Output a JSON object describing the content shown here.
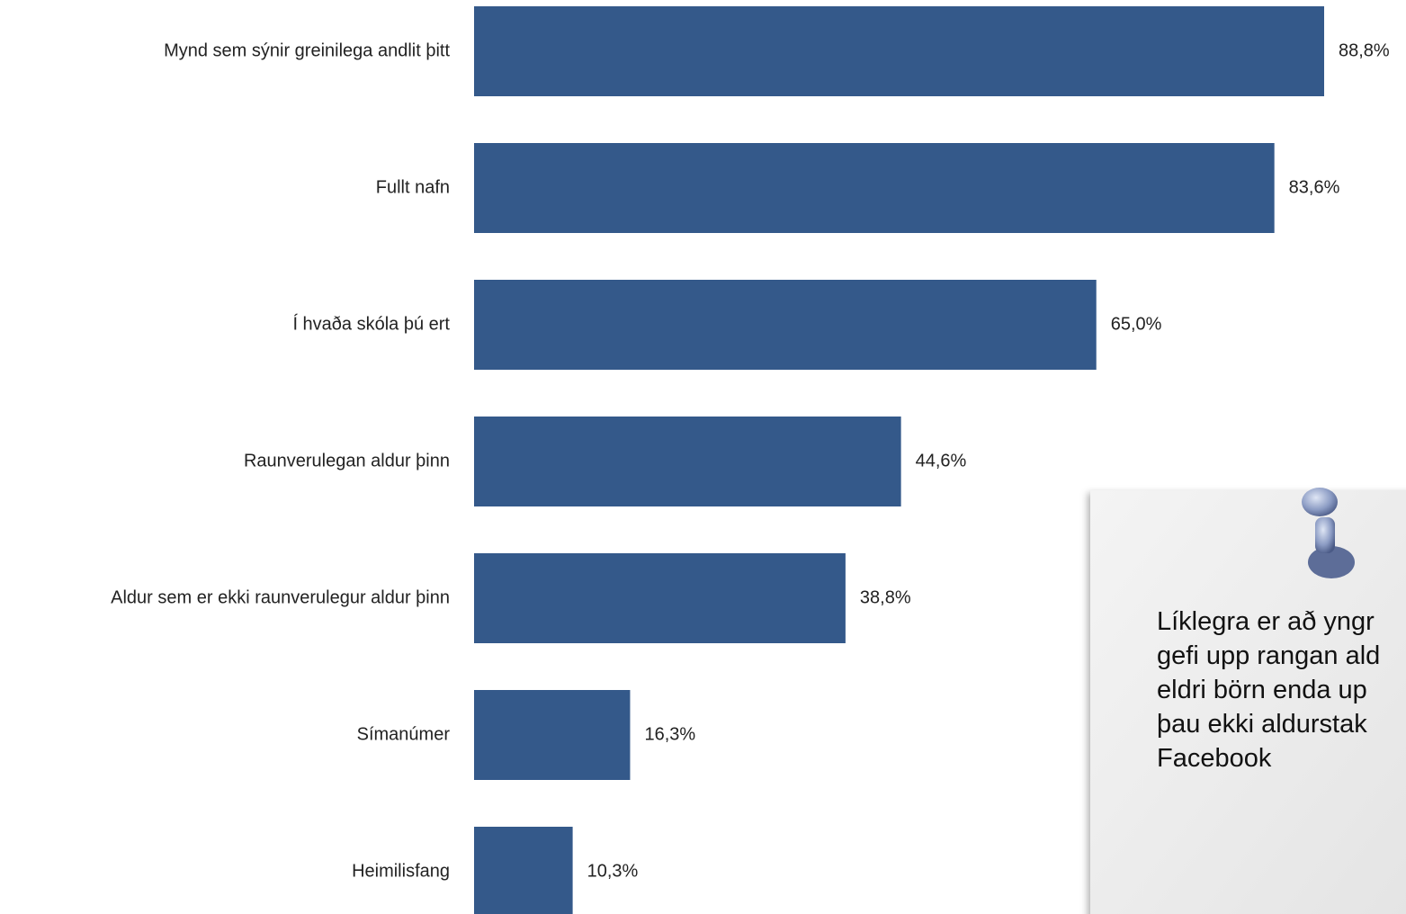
{
  "chart_data": {
    "type": "bar",
    "orientation": "horizontal",
    "categories": [
      "Mynd sem sýnir greinilega andlit þitt",
      "Fullt nafn",
      "Í hvaða skóla þú ert",
      "Raunverulegan aldur þinn",
      "Aldur sem er ekki raunverulegur aldur þinn",
      "Símanúmer",
      "Heimilisfang"
    ],
    "values": [
      88.8,
      83.6,
      65.0,
      44.6,
      38.8,
      16.3,
      10.3
    ],
    "value_labels": [
      "88,8%",
      "83,6%",
      "65,0%",
      "44,6%",
      "38,8%",
      "16,3%",
      "10,3%"
    ],
    "color": "#34598a"
  },
  "note": {
    "lines": [
      "Líklegra er að yngr",
      "gefi upp rangan ald",
      "eldri börn enda up",
      "þau ekki aldurstak",
      "Facebook"
    ]
  }
}
